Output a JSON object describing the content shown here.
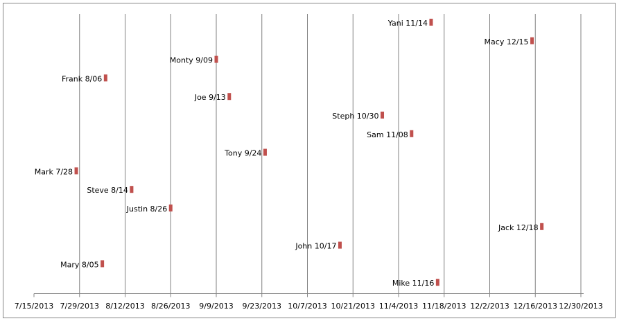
{
  "chart_data": {
    "type": "scatter",
    "x_axis": {
      "ticks": [
        "7/15/2013",
        "7/29/2013",
        "8/12/2013",
        "8/26/2013",
        "9/9/2013",
        "9/23/2013",
        "10/7/2013",
        "10/21/2013",
        "11/4/2013",
        "11/18/2013",
        "12/2/2013",
        "12/16/2013",
        "12/30/2013"
      ],
      "range": [
        "2013-07-15",
        "2013-12-30"
      ],
      "major_gridlines": true
    },
    "y_axis": {
      "visible": false
    },
    "legend": "none",
    "colors": {
      "marker": "#C0504D",
      "gridline": "#808080",
      "border": "#868686",
      "axis": "#868686"
    },
    "points": [
      {
        "label": "Yani 11/14",
        "date": "2013-11-14",
        "row": 1
      },
      {
        "label": "Macy 12/15",
        "date": "2013-12-15",
        "row": 2
      },
      {
        "label": "Monty 9/09",
        "date": "2013-09-09",
        "row": 3
      },
      {
        "label": "Frank 8/06",
        "date": "2013-08-06",
        "row": 4
      },
      {
        "label": "Joe 9/13",
        "date": "2013-09-13",
        "row": 5
      },
      {
        "label": "Steph 10/30",
        "date": "2013-10-30",
        "row": 6
      },
      {
        "label": "Sam 11/08",
        "date": "2013-11-08",
        "row": 7
      },
      {
        "label": "Tony 9/24",
        "date": "2013-09-24",
        "row": 8
      },
      {
        "label": "Mark 7/28",
        "date": "2013-07-28",
        "row": 9
      },
      {
        "label": "Steve  8/14",
        "date": "2013-08-14",
        "row": 10
      },
      {
        "label": "Justin 8/26",
        "date": "2013-08-26",
        "row": 11
      },
      {
        "label": "Jack 12/18",
        "date": "2013-12-18",
        "row": 12
      },
      {
        "label": "John 10/17",
        "date": "2013-10-17",
        "row": 13
      },
      {
        "label": "Mary 8/05",
        "date": "2013-08-05",
        "row": 14
      },
      {
        "label": "Mike 11/16",
        "date": "2013-11-16",
        "row": 15
      }
    ]
  }
}
